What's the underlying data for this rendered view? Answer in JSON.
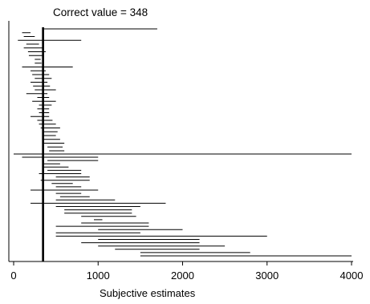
{
  "chart_data": {
    "type": "interval",
    "title": "Correct value = 348",
    "xlabel": "Subjective estimates",
    "ylabel": "",
    "correct_value": 348,
    "xlim": [
      0,
      4000
    ],
    "xticks": [
      0,
      1000,
      2000,
      3000,
      4000
    ],
    "legend": "none",
    "grid": false,
    "intervals_upper": [
      [
        340,
        1700
      ],
      [
        100,
        200
      ],
      [
        120,
        250
      ],
      [
        50,
        800
      ],
      [
        150,
        300
      ],
      [
        120,
        340
      ],
      [
        170,
        380
      ],
      [
        180,
        340
      ],
      [
        250,
        320
      ],
      [
        250,
        330
      ],
      [
        100,
        700
      ],
      [
        200,
        380
      ],
      [
        220,
        420
      ],
      [
        250,
        450
      ],
      [
        200,
        400
      ],
      [
        230,
        430
      ],
      [
        250,
        500
      ],
      [
        150,
        400
      ],
      [
        280,
        420
      ],
      [
        220,
        500
      ],
      [
        300,
        450
      ],
      [
        280,
        420
      ],
      [
        300,
        420
      ],
      [
        200,
        420
      ],
      [
        280,
        460
      ],
      [
        300,
        500
      ],
      [
        320,
        550
      ],
      [
        350,
        520
      ],
      [
        350,
        500
      ],
      [
        350,
        550
      ],
      [
        350,
        600
      ],
      [
        400,
        580
      ],
      [
        420,
        600
      ]
    ],
    "divider_value": 4000,
    "intervals_lower": [
      [
        100,
        1000
      ],
      [
        400,
        1000
      ],
      [
        350,
        550
      ],
      [
        350,
        650
      ],
      [
        400,
        800
      ],
      [
        300,
        800
      ],
      [
        500,
        900
      ],
      [
        320,
        900
      ],
      [
        450,
        700
      ],
      [
        500,
        800
      ],
      [
        200,
        1000
      ],
      [
        500,
        800
      ],
      [
        550,
        900
      ],
      [
        500,
        1200
      ],
      [
        200,
        1800
      ],
      [
        500,
        1500
      ],
      [
        600,
        1400
      ],
      [
        600,
        1400
      ],
      [
        800,
        1450
      ],
      [
        950,
        1050
      ],
      [
        800,
        1600
      ],
      [
        500,
        1600
      ],
      [
        1000,
        2000
      ],
      [
        500,
        1500
      ],
      [
        500,
        3000
      ],
      [
        1000,
        2200
      ],
      [
        800,
        2200
      ],
      [
        1000,
        2500
      ],
      [
        1200,
        2200
      ],
      [
        1500,
        2800
      ],
      [
        1500,
        4000
      ]
    ]
  }
}
